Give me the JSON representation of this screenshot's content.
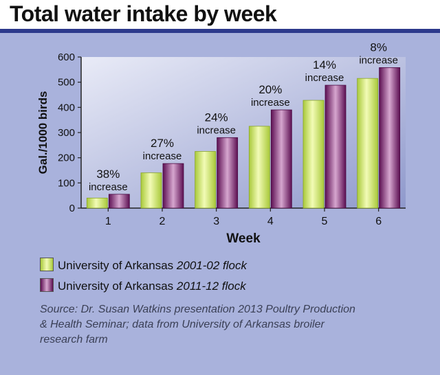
{
  "title": "Total water intake by week",
  "chart_data": {
    "type": "bar",
    "title": "Total water intake by week",
    "xlabel": "Week",
    "ylabel": "Gal./1000 birds",
    "ylim": [
      0,
      600
    ],
    "yticks": [
      0,
      100,
      200,
      300,
      400,
      500,
      600
    ],
    "categories": [
      "1",
      "2",
      "3",
      "4",
      "5",
      "6"
    ],
    "series": [
      {
        "name": "University of Arkansas 2001-02 flock",
        "values": [
          40,
          140,
          225,
          325,
          428,
          515
        ],
        "color": "#cfe86a"
      },
      {
        "name": "University of Arkansas 2011-12 flock",
        "values": [
          55,
          177,
          280,
          390,
          488,
          558
        ],
        "color": "#7a1f6b"
      }
    ],
    "annotations": [
      {
        "pct": "38%",
        "word": "increase"
      },
      {
        "pct": "27%",
        "word": "increase"
      },
      {
        "pct": "24%",
        "word": "increase"
      },
      {
        "pct": "20%",
        "word": "increase"
      },
      {
        "pct": "14%",
        "word": "increase"
      },
      {
        "pct": "8%",
        "word": "increase"
      }
    ],
    "grid": false,
    "legend_position": "bottom-left"
  },
  "legend": {
    "item1_name": "University of Arkansas",
    "item1_years": "2001-02 flock",
    "item2_name": "University of Arkansas",
    "item2_years": "2011-12 flock"
  },
  "source": "Source: Dr. Susan Watkins presentation 2013 Poultry Production & Health Seminar; data from University of Arkansas broiler research farm"
}
